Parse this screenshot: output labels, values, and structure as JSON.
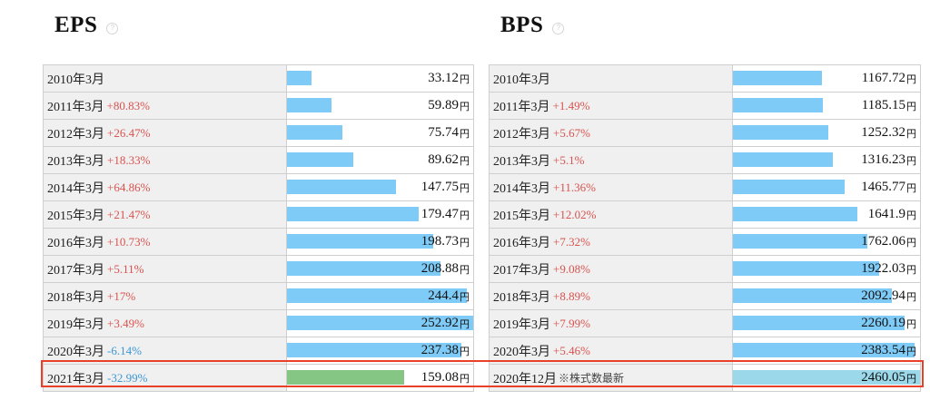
{
  "eps": {
    "title": "EPS",
    "help_icon": "?",
    "unit": "円",
    "rows": [
      {
        "label": "2010年3月",
        "change": "",
        "dir": "",
        "note": "",
        "value": "33.12",
        "num": 33.12
      },
      {
        "label": "2011年3月",
        "change": "+80.83%",
        "dir": "up",
        "note": "",
        "value": "59.89",
        "num": 59.89
      },
      {
        "label": "2012年3月",
        "change": "+26.47%",
        "dir": "up",
        "note": "",
        "value": "75.74",
        "num": 75.74
      },
      {
        "label": "2013年3月",
        "change": "+18.33%",
        "dir": "up",
        "note": "",
        "value": "89.62",
        "num": 89.62
      },
      {
        "label": "2014年3月",
        "change": "+64.86%",
        "dir": "up",
        "note": "",
        "value": "147.75",
        "num": 147.75
      },
      {
        "label": "2015年3月",
        "change": "+21.47%",
        "dir": "up",
        "note": "",
        "value": "179.47",
        "num": 179.47
      },
      {
        "label": "2016年3月",
        "change": "+10.73%",
        "dir": "up",
        "note": "",
        "value": "198.73",
        "num": 198.73
      },
      {
        "label": "2017年3月",
        "change": "+5.11%",
        "dir": "up",
        "note": "",
        "value": "208.88",
        "num": 208.88
      },
      {
        "label": "2018年3月",
        "change": "+17%",
        "dir": "up",
        "note": "",
        "value": "244.4",
        "num": 244.4
      },
      {
        "label": "2019年3月",
        "change": "+3.49%",
        "dir": "up",
        "note": "",
        "value": "252.92",
        "num": 252.92
      },
      {
        "label": "2020年3月",
        "change": "-6.14%",
        "dir": "down",
        "note": "",
        "value": "237.38",
        "num": 237.38
      },
      {
        "label": "2021年3月",
        "change": "-32.99%",
        "dir": "down",
        "note": "",
        "value": "159.08",
        "num": 159.08,
        "latest": true
      }
    ]
  },
  "bps": {
    "title": "BPS",
    "help_icon": "?",
    "unit": "円",
    "rows": [
      {
        "label": "2010年3月",
        "change": "",
        "dir": "",
        "note": "",
        "value": "1167.72",
        "num": 1167.72
      },
      {
        "label": "2011年3月",
        "change": "+1.49%",
        "dir": "up",
        "note": "",
        "value": "1185.15",
        "num": 1185.15
      },
      {
        "label": "2012年3月",
        "change": "+5.67%",
        "dir": "up",
        "note": "",
        "value": "1252.32",
        "num": 1252.32
      },
      {
        "label": "2013年3月",
        "change": "+5.1%",
        "dir": "up",
        "note": "",
        "value": "1316.23",
        "num": 1316.23
      },
      {
        "label": "2014年3月",
        "change": "+11.36%",
        "dir": "up",
        "note": "",
        "value": "1465.77",
        "num": 1465.77
      },
      {
        "label": "2015年3月",
        "change": "+12.02%",
        "dir": "up",
        "note": "",
        "value": "1641.9",
        "num": 1641.9
      },
      {
        "label": "2016年3月",
        "change": "+7.32%",
        "dir": "up",
        "note": "",
        "value": "1762.06",
        "num": 1762.06
      },
      {
        "label": "2017年3月",
        "change": "+9.08%",
        "dir": "up",
        "note": "",
        "value": "1922.03",
        "num": 1922.03
      },
      {
        "label": "2018年3月",
        "change": "+8.89%",
        "dir": "up",
        "note": "",
        "value": "2092.94",
        "num": 2092.94
      },
      {
        "label": "2019年3月",
        "change": "+7.99%",
        "dir": "up",
        "note": "",
        "value": "2260.19",
        "num": 2260.19
      },
      {
        "label": "2020年3月",
        "change": "+5.46%",
        "dir": "up",
        "note": "",
        "value": "2383.54",
        "num": 2383.54
      },
      {
        "label": "2020年12月",
        "change": "",
        "dir": "",
        "note": "※株式数最新",
        "value": "2460.05",
        "num": 2460.05,
        "latest": true
      }
    ]
  },
  "colors": {
    "bar": "#7fcbf7",
    "latest_eps_bar": "#86c684",
    "latest_bps_bar": "#9ad8ea",
    "up": "#d9534f",
    "down": "#3a97d4",
    "highlight": "#e8402a"
  }
}
